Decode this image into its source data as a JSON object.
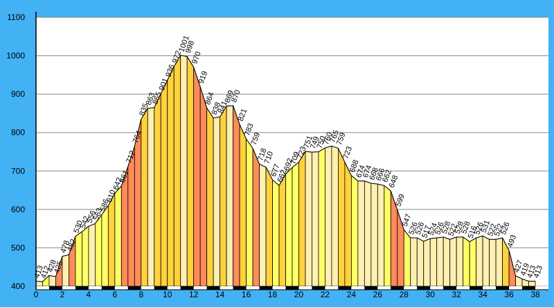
{
  "chart_data": {
    "type": "area",
    "title": "",
    "xlabel": "",
    "ylabel": "",
    "xlim": [
      0,
      39
    ],
    "ylim": [
      400,
      1100
    ],
    "x_ticks": [
      0,
      2,
      4,
      6,
      8,
      10,
      12,
      14,
      16,
      18,
      20,
      22,
      24,
      26,
      28,
      30,
      32,
      34,
      36,
      38
    ],
    "x_tick_labels": [
      "0",
      "2",
      "4",
      "6",
      "8",
      "10",
      "12",
      "14",
      "16",
      "18",
      "20",
      "22",
      "24",
      "26",
      "28",
      "30",
      "32",
      "34",
      "36",
      "38"
    ],
    "y_ticks": [
      400,
      500,
      600,
      700,
      800,
      900,
      1000,
      1100
    ],
    "y_tick_labels": [
      "400",
      "500",
      "600",
      "700",
      "800",
      "900",
      "1000",
      "1100"
    ],
    "grid": true,
    "points": [
      {
        "x": 0,
        "y": 413,
        "label": "413"
      },
      {
        "x": 0.5,
        "y": 412,
        "label": "412"
      },
      {
        "x": 1,
        "y": 428,
        "label": "428"
      },
      {
        "x": 1.5,
        "y": 425,
        "label": "425"
      },
      {
        "x": 2,
        "y": 478,
        "label": "478"
      },
      {
        "x": 2.5,
        "y": 482,
        "label": "482"
      },
      {
        "x": 3,
        "y": 530,
        "label": "530"
      },
      {
        "x": 3.5,
        "y": 542,
        "label": "542"
      },
      {
        "x": 4,
        "y": 556,
        "label": "556"
      },
      {
        "x": 4.5,
        "y": 563,
        "label": "563"
      },
      {
        "x": 5,
        "y": 586,
        "label": "586"
      },
      {
        "x": 5.5,
        "y": 610,
        "label": "610"
      },
      {
        "x": 6,
        "y": 642,
        "label": "642"
      },
      {
        "x": 6.5,
        "y": 661,
        "label": "661"
      },
      {
        "x": 7,
        "y": 712,
        "label": "712"
      },
      {
        "x": 7.5,
        "y": 764,
        "label": "764"
      },
      {
        "x": 8,
        "y": 835,
        "label": "835"
      },
      {
        "x": 8.5,
        "y": 863,
        "label": "863"
      },
      {
        "x": 9,
        "y": 865,
        "label": "865"
      },
      {
        "x": 9.5,
        "y": 901,
        "label": "901"
      },
      {
        "x": 10,
        "y": 936,
        "label": "936"
      },
      {
        "x": 10.5,
        "y": 972,
        "label": "972"
      },
      {
        "x": 11,
        "y": 1001,
        "label": "1001"
      },
      {
        "x": 11.5,
        "y": 998,
        "label": "998"
      },
      {
        "x": 12,
        "y": 970,
        "label": "970"
      },
      {
        "x": 12.5,
        "y": 919,
        "label": "919"
      },
      {
        "x": 13,
        "y": 864,
        "label": "864"
      },
      {
        "x": 13.5,
        "y": 838,
        "label": "838"
      },
      {
        "x": 14,
        "y": 841,
        "label": "841"
      },
      {
        "x": 14.5,
        "y": 869,
        "label": "869"
      },
      {
        "x": 15,
        "y": 870,
        "label": "870"
      },
      {
        "x": 15.5,
        "y": 821,
        "label": "821"
      },
      {
        "x": 16,
        "y": 783,
        "label": "783"
      },
      {
        "x": 16.5,
        "y": 759,
        "label": "759"
      },
      {
        "x": 17,
        "y": 718,
        "label": "718"
      },
      {
        "x": 17.5,
        "y": 710,
        "label": "710"
      },
      {
        "x": 18,
        "y": 677,
        "label": "677"
      },
      {
        "x": 18.5,
        "y": 662,
        "label": "662"
      },
      {
        "x": 19,
        "y": 692,
        "label": "692"
      },
      {
        "x": 19.5,
        "y": 709,
        "label": "709"
      },
      {
        "x": 20,
        "y": 723,
        "label": "723"
      },
      {
        "x": 20.5,
        "y": 751,
        "label": "751"
      },
      {
        "x": 21,
        "y": 749,
        "label": "749"
      },
      {
        "x": 21.5,
        "y": 750,
        "label": "750"
      },
      {
        "x": 22,
        "y": 760,
        "label": "760"
      },
      {
        "x": 22.5,
        "y": 765,
        "label": "765"
      },
      {
        "x": 23,
        "y": 759,
        "label": "759"
      },
      {
        "x": 23.5,
        "y": 723,
        "label": "723"
      },
      {
        "x": 24,
        "y": 688,
        "label": "688"
      },
      {
        "x": 24.5,
        "y": 674,
        "label": "674"
      },
      {
        "x": 25,
        "y": 674,
        "label": "674"
      },
      {
        "x": 25.5,
        "y": 668,
        "label": "668"
      },
      {
        "x": 26,
        "y": 666,
        "label": "666"
      },
      {
        "x": 26.5,
        "y": 662,
        "label": "662"
      },
      {
        "x": 27,
        "y": 648,
        "label": "648"
      },
      {
        "x": 27.5,
        "y": 599,
        "label": "599"
      },
      {
        "x": 28,
        "y": 547,
        "label": "547"
      },
      {
        "x": 28.5,
        "y": 526,
        "label": "526"
      },
      {
        "x": 29,
        "y": 526,
        "label": "526"
      },
      {
        "x": 29.5,
        "y": 517,
        "label": "517"
      },
      {
        "x": 30,
        "y": 524,
        "label": "524"
      },
      {
        "x": 30.5,
        "y": 526,
        "label": "526"
      },
      {
        "x": 31,
        "y": 528,
        "label": "528"
      },
      {
        "x": 31.5,
        "y": 522,
        "label": "522"
      },
      {
        "x": 32,
        "y": 528,
        "label": "528"
      },
      {
        "x": 32.5,
        "y": 528,
        "label": "528"
      },
      {
        "x": 33,
        "y": 516,
        "label": "516"
      },
      {
        "x": 33.5,
        "y": 526,
        "label": "526"
      },
      {
        "x": 34,
        "y": 531,
        "label": "531"
      },
      {
        "x": 34.5,
        "y": 522,
        "label": "522"
      },
      {
        "x": 35,
        "y": 522,
        "label": "522"
      },
      {
        "x": 35.5,
        "y": 526,
        "label": "526"
      },
      {
        "x": 36,
        "y": 493,
        "label": "493"
      },
      {
        "x": 36.5,
        "y": 427,
        "label": "427"
      },
      {
        "x": 37,
        "y": 419,
        "label": "419"
      },
      {
        "x": 37.5,
        "y": 413,
        "label": "413"
      },
      {
        "x": 38,
        "y": 413,
        "label": "413"
      }
    ],
    "gradient_colors": {
      "flat": "#fff0b0",
      "gentle": "#ffff66",
      "moderate": "#ffd23c",
      "steep": "#ff8a5a"
    },
    "colors": {
      "background": "#42b2f4",
      "plot_background": "#ffffff",
      "gridline": "#888888",
      "axis": "#000000"
    }
  }
}
